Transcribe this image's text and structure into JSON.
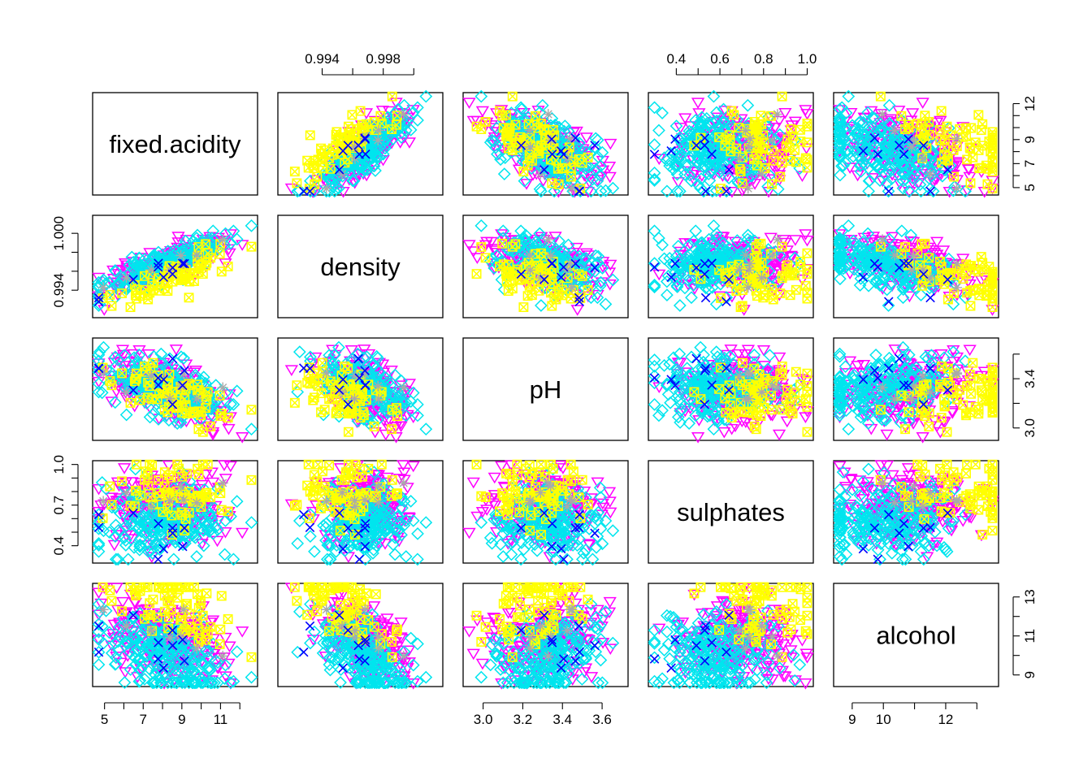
{
  "chart_data": {
    "type": "scatter",
    "variables": [
      {
        "name": "fixed.acidity",
        "range": [
          4.7,
          12.6
        ],
        "ticks": [
          5,
          6,
          7,
          8,
          9,
          10,
          11,
          12
        ],
        "tick_labels": [
          "5",
          "",
          "7",
          "",
          "9",
          "",
          "11",
          ""
        ]
      },
      {
        "name": "density",
        "range": [
          0.9915,
          1.0015
        ],
        "ticks": [
          0.994,
          0.996,
          0.998,
          1.0
        ],
        "tick_labels": [
          "0.994",
          "",
          "0.998",
          ""
        ]
      },
      {
        "name": "pH",
        "range": [
          2.93,
          3.7
        ],
        "ticks": [
          3.0,
          3.2,
          3.4,
          3.6
        ],
        "tick_labels": [
          "3.0",
          "3.2",
          "3.4",
          "3.6"
        ]
      },
      {
        "name": "sulphates",
        "range": [
          0.3,
          1.0
        ],
        "ticks": [
          0.4,
          0.5,
          0.6,
          0.7,
          0.8,
          0.9,
          1.0
        ],
        "tick_labels": [
          "0.4",
          "",
          "0.6",
          "",
          "0.8",
          "",
          "1.0"
        ]
      },
      {
        "name": "alcohol",
        "range": [
          8.6,
          13.5
        ],
        "ticks": [
          9,
          10,
          11,
          12,
          13
        ],
        "tick_labels": [
          "9",
          "10",
          "",
          "12",
          ""
        ]
      }
    ],
    "left_axis_labels": {
      "density": [
        "0.994",
        "1.000"
      ],
      "sulphates": [
        "0.4",
        "0.7",
        "1.0"
      ]
    },
    "right_axis_labels": {
      "fixed.acidity": [
        "5",
        "7",
        "9",
        "12"
      ],
      "pH": [
        "3.0",
        "3.4"
      ],
      "alcohol": [
        "9",
        "11",
        "13"
      ]
    },
    "left_axis_ticks": {
      "density": [
        0.994,
        0.996,
        0.998,
        1.0
      ],
      "sulphates": [
        0.4,
        0.5,
        0.6,
        0.7,
        0.8,
        0.9,
        1.0
      ]
    },
    "right_axis_ticks": {
      "fixed.acidity": [
        5,
        6,
        7,
        8,
        9,
        10,
        11,
        12
      ],
      "pH": [
        3.0,
        3.2,
        3.4,
        3.6
      ],
      "alcohol": [
        9,
        10,
        11,
        12,
        13
      ]
    },
    "groups": [
      {
        "color": "#0000FF",
        "marker": "x",
        "n": 10
      },
      {
        "color": "#FFFF00",
        "marker": "square-x",
        "n": 70
      },
      {
        "color": "#FF00FF",
        "marker": "triangle-down",
        "n": 220
      },
      {
        "color": "#00E5EE",
        "marker": "diamond",
        "n": 230
      },
      {
        "color": "#AAAAAA",
        "marker": "asterisk",
        "n": 8
      }
    ],
    "grid": false,
    "legend": "none"
  }
}
